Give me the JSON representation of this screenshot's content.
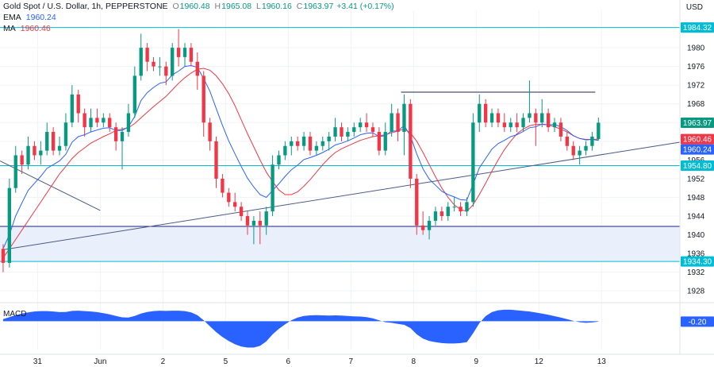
{
  "header": {
    "symbol": "Gold Spot / U.S. Dollar, 1h, PEPPERSTONE",
    "o_label": "O",
    "o": "1960.48",
    "h_label": "H",
    "h": "1965.08",
    "l_label": "L",
    "l": "1960.16",
    "c_label": "C",
    "c": "1963.97",
    "change": "+3.41 (+0.17%)",
    "ema_label": "EMA",
    "ema_value": "1960.24",
    "ma_label": "MA",
    "ma_value": "1960.46",
    "currency": "USD"
  },
  "macd": {
    "label": "MACD",
    "value": "-0.20"
  },
  "chart_data": {
    "type": "candlestick",
    "ylim": [
      1926,
      1988
    ],
    "y_ticks": [
      1928,
      1932,
      1936,
      1940,
      1944,
      1948,
      1952,
      1956,
      1960,
      1964,
      1968,
      1972,
      1976,
      1980
    ],
    "x_ticks": [
      {
        "label": "31",
        "t": 5.5
      },
      {
        "label": "Jun",
        "t": 15.5
      },
      {
        "label": "2",
        "t": 25.5
      },
      {
        "label": "5",
        "t": 35.5
      },
      {
        "label": "6",
        "t": 45.5
      },
      {
        "label": "7",
        "t": 55.5
      },
      {
        "label": "8",
        "t": 65.5
      },
      {
        "label": "9",
        "t": 75.5
      },
      {
        "label": "12",
        "t": 85.5
      },
      {
        "label": "13",
        "t": 95.5
      }
    ],
    "x_range": [
      -0.5,
      108
    ],
    "ohlc": [
      [
        1937.0,
        1938.0,
        1932.0,
        1934.0
      ],
      [
        1934.0,
        1952.0,
        1933.0,
        1950.0
      ],
      [
        1950.0,
        1959.0,
        1949.0,
        1957.0
      ],
      [
        1957.0,
        1958.0,
        1953.0,
        1955.0
      ],
      [
        1955.0,
        1961.0,
        1954.0,
        1959.0
      ],
      [
        1959.0,
        1960.0,
        1956.0,
        1957.0
      ],
      [
        1957.0,
        1960.0,
        1955.0,
        1958.0
      ],
      [
        1958.0,
        1964.0,
        1957.0,
        1962.0
      ],
      [
        1962.0,
        1963.0,
        1957.0,
        1958.0
      ],
      [
        1958.0,
        1961.0,
        1957.0,
        1959.0
      ],
      [
        1959.0,
        1966.0,
        1958.0,
        1964.0
      ],
      [
        1964.0,
        1972.0,
        1963.0,
        1970.0
      ],
      [
        1970.0,
        1971.0,
        1964.0,
        1966.0
      ],
      [
        1966.0,
        1967.0,
        1961.0,
        1963.0
      ],
      [
        1963.0,
        1967.0,
        1962.0,
        1965.0
      ],
      [
        1965.0,
        1967.0,
        1963.0,
        1964.0
      ],
      [
        1964.0,
        1966.0,
        1963.0,
        1965.0
      ],
      [
        1965.0,
        1966.0,
        1962.0,
        1963.0
      ],
      [
        1963.0,
        1964.0,
        1958.0,
        1960.0
      ],
      [
        1960.0,
        1963.0,
        1954.0,
        1962.0
      ],
      [
        1962.0,
        1968.0,
        1961.0,
        1966.0
      ],
      [
        1966.0,
        1976.0,
        1965.0,
        1974.0
      ],
      [
        1974.0,
        1983.0,
        1973.0,
        1980.0
      ],
      [
        1980.0,
        1981.0,
        1975.0,
        1977.0
      ],
      [
        1977.0,
        1978.0,
        1975.0,
        1976.0
      ],
      [
        1976.0,
        1978.0,
        1974.0,
        1976.0
      ],
      [
        1976.0,
        1977.0,
        1972.0,
        1974.0
      ],
      [
        1974.0,
        1981.0,
        1973.0,
        1980.0
      ],
      [
        1980.0,
        1984.0,
        1976.0,
        1978.0
      ],
      [
        1978.0,
        1981.0,
        1976.0,
        1980.0
      ],
      [
        1980.0,
        1981.0,
        1976.0,
        1977.0
      ],
      [
        1977.0,
        1979.0,
        1971.0,
        1974.0
      ],
      [
        1974.0,
        1975.0,
        1961.0,
        1964.0
      ],
      [
        1964.0,
        1965.0,
        1958.0,
        1960.0
      ],
      [
        1960.0,
        1961.0,
        1950.0,
        1952.0
      ],
      [
        1952.0,
        1953.0,
        1948.0,
        1949.0
      ],
      [
        1949.0,
        1950.0,
        1946.0,
        1947.0
      ],
      [
        1947.0,
        1949.0,
        1945.0,
        1946.0
      ],
      [
        1946.0,
        1947.0,
        1943.0,
        1944.0
      ],
      [
        1944.0,
        1945.0,
        1940.0,
        1942.0
      ],
      [
        1942.0,
        1944.0,
        1938.0,
        1943.0
      ],
      [
        1943.0,
        1945.0,
        1938.0,
        1942.0
      ],
      [
        1942.0,
        1946.0,
        1940.0,
        1945.0
      ],
      [
        1945.0,
        1957.0,
        1944.0,
        1955.0
      ],
      [
        1955.0,
        1958.0,
        1954.0,
        1957.0
      ],
      [
        1957.0,
        1960.0,
        1956.0,
        1959.0
      ],
      [
        1959.0,
        1961.0,
        1957.0,
        1960.0
      ],
      [
        1960.0,
        1961.0,
        1958.0,
        1959.0
      ],
      [
        1959.0,
        1962.0,
        1958.0,
        1961.0
      ],
      [
        1961.0,
        1962.0,
        1957.0,
        1958.0
      ],
      [
        1958.0,
        1960.0,
        1957.0,
        1959.0
      ],
      [
        1959.0,
        1961.0,
        1958.0,
        1960.0
      ],
      [
        1960.0,
        1962.0,
        1958.0,
        1961.0
      ],
      [
        1961.0,
        1965.0,
        1960.0,
        1963.0
      ],
      [
        1963.0,
        1964.0,
        1960.0,
        1961.0
      ],
      [
        1961.0,
        1963.0,
        1960.0,
        1962.0
      ],
      [
        1962.0,
        1964.0,
        1961.0,
        1963.0
      ],
      [
        1963.0,
        1965.0,
        1962.0,
        1964.0
      ],
      [
        1964.0,
        1966.0,
        1962.0,
        1963.0
      ],
      [
        1963.0,
        1964.0,
        1961.0,
        1962.0
      ],
      [
        1962.0,
        1963.0,
        1957.0,
        1958.0
      ],
      [
        1958.0,
        1964.0,
        1957.0,
        1962.0
      ],
      [
        1962.0,
        1968.0,
        1961.0,
        1966.0
      ],
      [
        1966.0,
        1967.0,
        1960.0,
        1962.0
      ],
      [
        1962.0,
        1970.0,
        1957.0,
        1968.0
      ],
      [
        1968.0,
        1969.0,
        1950.0,
        1952.0
      ],
      [
        1952.0,
        1953.0,
        1940.0,
        1942.0
      ],
      [
        1942.0,
        1945.0,
        1940.0,
        1941.0
      ],
      [
        1941.0,
        1944.0,
        1939.0,
        1943.0
      ],
      [
        1943.0,
        1946.0,
        1942.0,
        1945.0
      ],
      [
        1945.0,
        1946.0,
        1943.0,
        1944.0
      ],
      [
        1944.0,
        1947.0,
        1943.0,
        1946.0
      ],
      [
        1946.0,
        1948.0,
        1945.0,
        1946.0
      ],
      [
        1946.0,
        1947.0,
        1944.0,
        1945.0
      ],
      [
        1945.0,
        1948.0,
        1944.0,
        1947.0
      ],
      [
        1947.0,
        1966.0,
        1946.0,
        1964.0
      ],
      [
        1964.0,
        1970.0,
        1962.0,
        1968.0
      ],
      [
        1968.0,
        1969.0,
        1963.0,
        1964.0
      ],
      [
        1964.0,
        1967.0,
        1963.0,
        1966.0
      ],
      [
        1966.0,
        1967.0,
        1963.0,
        1964.0
      ],
      [
        1964.0,
        1966.0,
        1962.0,
        1963.0
      ],
      [
        1963.0,
        1965.0,
        1962.0,
        1964.0
      ],
      [
        1964.0,
        1966.0,
        1962.0,
        1963.0
      ],
      [
        1963.0,
        1966.0,
        1962.0,
        1965.0
      ],
      [
        1965.0,
        1973.0,
        1964.0,
        1966.0
      ],
      [
        1966.0,
        1967.0,
        1959.0,
        1964.0
      ],
      [
        1964.0,
        1969.0,
        1963.0,
        1966.0
      ],
      [
        1966.0,
        1967.0,
        1962.0,
        1963.0
      ],
      [
        1963.0,
        1965.0,
        1962.0,
        1964.0
      ],
      [
        1964.0,
        1965.0,
        1960.0,
        1961.0
      ],
      [
        1961.0,
        1962.0,
        1958.0,
        1959.0
      ],
      [
        1959.0,
        1960.0,
        1956.0,
        1957.0
      ],
      [
        1957.0,
        1959.0,
        1955.0,
        1958.0
      ],
      [
        1958.0,
        1960.0,
        1957.0,
        1959.0
      ],
      [
        1959.0,
        1962.0,
        1958.0,
        1961.0
      ],
      [
        1960.48,
        1965.08,
        1960.16,
        1963.97
      ]
    ],
    "ema": [
      1937.0,
      1940.0,
      1944.0,
      1946.8,
      1949.5,
      1951.0,
      1952.5,
      1954.2,
      1955.0,
      1955.8,
      1957.2,
      1959.8,
      1961.0,
      1961.4,
      1962.0,
      1962.4,
      1962.8,
      1962.9,
      1962.3,
      1962.3,
      1963.1,
      1965.3,
      1968.7,
      1970.4,
      1971.5,
      1972.4,
      1972.7,
      1974.2,
      1975.0,
      1976.0,
      1976.2,
      1975.8,
      1973.4,
      1970.7,
      1967.0,
      1963.4,
      1960.1,
      1957.3,
      1954.6,
      1952.1,
      1950.2,
      1948.6,
      1948.0,
      1949.5,
      1950.9,
      1952.5,
      1953.9,
      1954.9,
      1956.1,
      1956.5,
      1957.0,
      1957.6,
      1958.3,
      1959.2,
      1959.6,
      1960.1,
      1960.7,
      1961.4,
      1961.7,
      1961.8,
      1961.0,
      1961.2,
      1962.2,
      1962.2,
      1963.4,
      1961.1,
      1957.3,
      1954.1,
      1951.9,
      1950.6,
      1949.3,
      1948.6,
      1948.1,
      1947.5,
      1947.4,
      1950.8,
      1954.3,
      1956.3,
      1958.3,
      1959.5,
      1960.2,
      1961.0,
      1961.4,
      1962.1,
      1962.9,
      1963.1,
      1963.7,
      1963.5,
      1963.6,
      1963.1,
      1962.3,
      1961.2,
      1960.6,
      1960.3,
      1960.4,
      1960.2
    ],
    "ma": [
      1935.0,
      1937.0,
      1939.0,
      1941.0,
      1943.0,
      1945.0,
      1947.0,
      1949.0,
      1951.0,
      1953.0,
      1954.6,
      1956.3,
      1957.6,
      1958.6,
      1959.6,
      1960.3,
      1961.0,
      1961.6,
      1962.3,
      1962.6,
      1962.9,
      1963.8,
      1965.0,
      1966.2,
      1967.4,
      1968.5,
      1969.6,
      1971.0,
      1972.4,
      1973.6,
      1974.6,
      1975.4,
      1975.6,
      1975.2,
      1974.0,
      1972.3,
      1970.2,
      1967.6,
      1964.6,
      1961.6,
      1958.8,
      1956.0,
      1953.4,
      1951.4,
      1949.6,
      1948.6,
      1948.6,
      1949.2,
      1950.4,
      1951.8,
      1953.4,
      1955.0,
      1956.4,
      1957.6,
      1958.4,
      1959.0,
      1959.6,
      1960.2,
      1960.6,
      1961.0,
      1961.2,
      1961.4,
      1961.8,
      1962.2,
      1962.6,
      1961.8,
      1960.0,
      1957.6,
      1955.0,
      1952.4,
      1950.0,
      1948.0,
      1946.4,
      1945.4,
      1945.0,
      1946.4,
      1948.6,
      1951.0,
      1953.6,
      1956.0,
      1958.2,
      1960.0,
      1961.6,
      1962.6,
      1963.3,
      1963.6,
      1963.6,
      1963.5,
      1963.1,
      1962.6,
      1962.0,
      1961.2,
      1960.6,
      1960.4,
      1960.4,
      1960.46
    ],
    "macd_hist": [
      1.0,
      2.0,
      3.0,
      3.8,
      4.4,
      4.8,
      5.0,
      5.0,
      4.8,
      4.5,
      4.6,
      5.1,
      5.2,
      5.0,
      4.8,
      4.5,
      4.0,
      3.4,
      2.6,
      1.9,
      1.8,
      2.6,
      3.8,
      4.6,
      5.0,
      5.2,
      5.1,
      5.2,
      5.2,
      5.0,
      4.4,
      3.0,
      0.5,
      -2.5,
      -5.4,
      -7.8,
      -9.8,
      -11.4,
      -12.5,
      -13.0,
      -13.0,
      -12.2,
      -10.0,
      -6.5,
      -3.8,
      -1.5,
      0.5,
      1.8,
      2.6,
      2.9,
      3.0,
      2.9,
      2.8,
      2.9,
      2.8,
      2.6,
      2.4,
      2.3,
      2.0,
      1.4,
      0.4,
      -0.5,
      -0.8,
      -1.3,
      -1.8,
      -3.4,
      -6.5,
      -8.6,
      -9.8,
      -10.4,
      -10.8,
      -11.0,
      -11.0,
      -10.8,
      -10.4,
      -6.0,
      -1.0,
      2.5,
      4.5,
      5.4,
      5.7,
      5.7,
      5.4,
      5.1,
      4.8,
      4.3,
      3.8,
      3.2,
      2.5,
      1.8,
      1.0,
      0.2,
      -0.5,
      -0.8,
      -0.6,
      -0.2
    ],
    "macd_range": [
      -14,
      8
    ],
    "price_labels": [
      {
        "value": 1984.32,
        "text": "1984.32",
        "color": "#00bcd4"
      },
      {
        "value": 1963.97,
        "text": "1963.97",
        "color": "#089981"
      },
      {
        "value": 1960.46,
        "text": "1960.46",
        "color": "#f23645"
      },
      {
        "value": 1960.24,
        "text": "1960.24",
        "color": "#2962ff"
      },
      {
        "value": 1954.8,
        "text": "1954.80",
        "color": "#00bcd4"
      },
      {
        "value": 1934.3,
        "text": "1934.30",
        "color": "#00bcd4"
      }
    ],
    "support_zone": [
      1934.3,
      1941.8
    ],
    "horizontal_lines": [
      {
        "value": 1984.32,
        "color": "#00bcd4"
      },
      {
        "value": 1954.8,
        "color": "#00bcd4"
      },
      {
        "value": 1934.3,
        "color": "#00bcd4"
      },
      {
        "value": 1941.8,
        "color": "#1a237e"
      }
    ],
    "resistance_segment": {
      "t1": 63.5,
      "t2": 94.5,
      "value": 1970.5
    },
    "trendline": {
      "t1": 0,
      "v1": 1936.8,
      "t2": 108,
      "v2": 1959.8
    },
    "down_line": {
      "t1": -0.5,
      "v1": 1955.8,
      "t2": 15.5,
      "v2": 1945.2
    },
    "colors": {
      "up": "#089981",
      "down": "#f23645",
      "ema": "#2962ff",
      "ma": "#f23645",
      "macd": "#2962ff",
      "grid": "#f0f3fa"
    }
  }
}
